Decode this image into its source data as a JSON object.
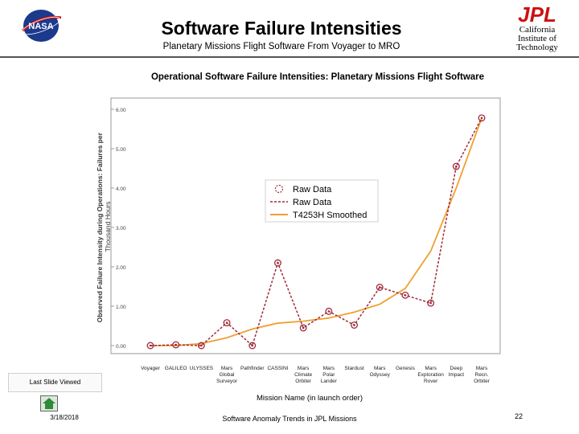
{
  "slide": {
    "title": "Software Failure Intensities",
    "subtitle": "Planetary Missions Flight Software From Voyager to MRO",
    "logo_left_text": "NASA",
    "logo_right_text": "JPL",
    "institution": "California\nInstitute of\nTechnology",
    "nav_button_label": "Last Slide Viewed",
    "date": "3/18/2018",
    "footer": "Software Anomaly Trends in JPL Missions",
    "page_number": "22",
    "nav_icon": "home-icon"
  },
  "colors": {
    "raw": "#9e2a3a",
    "smoothed": "#f0a030",
    "plot_border": "#999999",
    "nasa_blue": "#1b3a8c",
    "jpl_red": "#cc1111"
  },
  "chart_data": {
    "type": "line",
    "title": "Operational Software Failure Intensities: Planetary Missions Flight Software",
    "xlabel": "Mission Name (in launch order)",
    "ylabel": "Observed Failure Intensity during Operations: Failures per Thousand Hours",
    "categories": [
      "Voyager",
      "GALILEO",
      "ULYSSES",
      "Mars Global Surveyor",
      "Pathfinder",
      "CASSINI",
      "Mars Climate Orbiter",
      "Mars Polar Lander",
      "Stardust",
      "Mars Odyssey",
      "Genesis",
      "Mars Exploration Rover",
      "Deep Impact",
      "Mars Recn. Orbiter"
    ],
    "category_lines": [
      [
        "Voyager"
      ],
      [
        "GALILEO"
      ],
      [
        "ULYSSES"
      ],
      [
        "Mars",
        "Global",
        "Surveyor"
      ],
      [
        "Pathfinder"
      ],
      [
        "CASSINI"
      ],
      [
        "Mars",
        "Climate",
        "Orbiter"
      ],
      [
        "Mars",
        "Polar",
        "Lander"
      ],
      [
        "Stardust"
      ],
      [
        "Mars",
        "Odyssey"
      ],
      [
        "Genesis"
      ],
      [
        "Mars",
        "Exploration",
        "Rover"
      ],
      [
        "Deep",
        "Impact"
      ],
      [
        "Mars",
        "Recn.",
        "Orbiter"
      ]
    ],
    "series": [
      {
        "name": "Raw Data",
        "style": "points",
        "values": [
          0.0,
          0.02,
          0.0,
          0.58,
          0.0,
          2.1,
          0.45,
          0.87,
          0.52,
          1.48,
          1.28,
          1.08,
          4.55,
          5.78
        ]
      },
      {
        "name": "Raw Data",
        "style": "dashed",
        "values": [
          0.0,
          0.02,
          0.0,
          0.58,
          0.0,
          2.1,
          0.45,
          0.87,
          0.52,
          1.48,
          1.28,
          1.08,
          4.55,
          5.78
        ]
      },
      {
        "name": "T4253H Smoothed",
        "style": "solid",
        "values": [
          0.0,
          0.0,
          0.05,
          0.2,
          0.42,
          0.57,
          0.62,
          0.7,
          0.85,
          1.05,
          1.45,
          2.4,
          4.0,
          5.78
        ]
      }
    ],
    "yticks": [
      "0.00",
      "1.00",
      "2.00",
      "3.00",
      "4.00",
      "5.00",
      "6.00"
    ],
    "ylim": [
      0,
      6
    ],
    "grid": false,
    "legend_position": "center-right"
  }
}
